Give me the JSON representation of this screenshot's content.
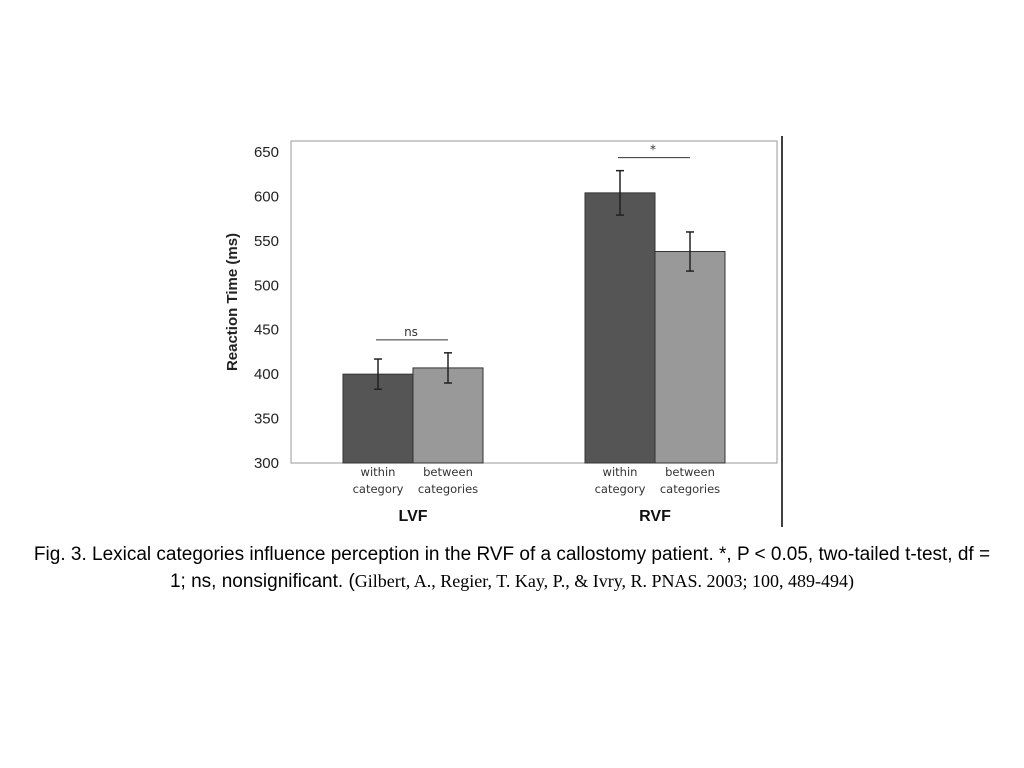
{
  "chart_data": {
    "type": "bar",
    "ylabel": "Reaction Time (ms)",
    "ylim": [
      300,
      650
    ],
    "yticks": [
      300,
      350,
      400,
      450,
      500,
      550,
      600,
      650
    ],
    "groups": [
      {
        "name": "LVF",
        "bars": [
          {
            "label": [
              "within",
              "category"
            ],
            "value": 400,
            "error": 17,
            "color": "#555555"
          },
          {
            "label": [
              "between",
              "categories"
            ],
            "value": 407,
            "error": 17,
            "color": "#999999"
          }
        ],
        "significance": "ns"
      },
      {
        "name": "RVF",
        "bars": [
          {
            "label": [
              "within",
              "category"
            ],
            "value": 604,
            "error": 25,
            "color": "#555555"
          },
          {
            "label": [
              "between",
              "categories"
            ],
            "value": 538,
            "error": 22,
            "color": "#999999"
          }
        ],
        "significance": "*"
      }
    ],
    "grid": false
  },
  "caption": {
    "main": "Fig. 3. Lexical categories influence perception in the RVF of a callostomy patient. *, P < 0.05, two-tailed t-test, df = 1; ns, nonsignificant. (",
    "citation": "Gilbert, A., Regier, T. Kay, P., & Ivry, R. PNAS. 2003; 100, 489-494)"
  }
}
